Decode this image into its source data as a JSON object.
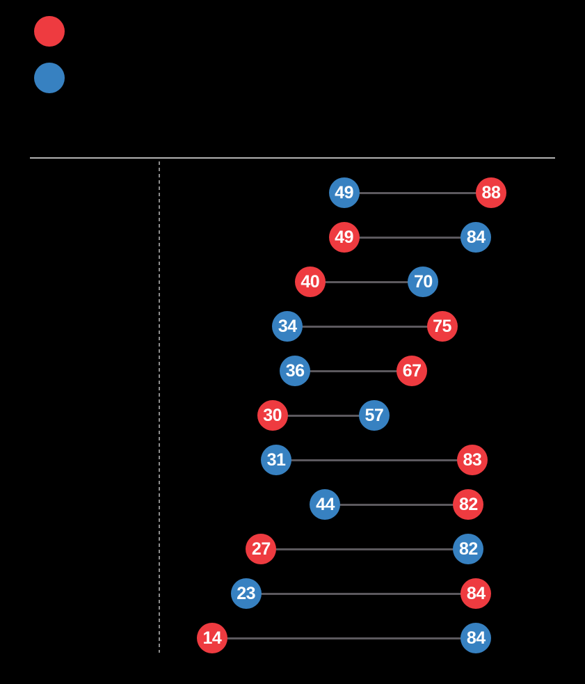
{
  "chart_data": {
    "type": "scatter",
    "variant": "dumbbell-horizontal",
    "grid": false,
    "xlim": [
      0,
      105
    ],
    "baseline": {
      "value": 0,
      "style": "dashed"
    },
    "legend": {
      "position": "top-left",
      "entries": [
        {
          "series": "red",
          "color": "#EE3B40"
        },
        {
          "series": "blue",
          "color": "#3781C1"
        }
      ]
    },
    "series_colors": {
      "red": "#EE3B40",
      "blue": "#3781C1"
    },
    "connector_color": "#5C595E",
    "rule_color": "#B2B2B2",
    "baseline_color": "#8C8C8C",
    "value_text_color": "#FFFFFF",
    "background_color": "#000000",
    "rows": [
      {
        "row": 1,
        "left": {
          "value": 49,
          "series": "blue"
        },
        "right": {
          "value": 88,
          "series": "red"
        }
      },
      {
        "row": 2,
        "left": {
          "value": 49,
          "series": "red"
        },
        "right": {
          "value": 84,
          "series": "blue"
        }
      },
      {
        "row": 3,
        "left": {
          "value": 40,
          "series": "red"
        },
        "right": {
          "value": 70,
          "series": "blue"
        }
      },
      {
        "row": 4,
        "left": {
          "value": 34,
          "series": "blue"
        },
        "right": {
          "value": 75,
          "series": "red"
        }
      },
      {
        "row": 5,
        "left": {
          "value": 36,
          "series": "blue"
        },
        "right": {
          "value": 67,
          "series": "red"
        }
      },
      {
        "row": 6,
        "left": {
          "value": 30,
          "series": "red"
        },
        "right": {
          "value": 57,
          "series": "blue"
        }
      },
      {
        "row": 7,
        "left": {
          "value": 31,
          "series": "blue"
        },
        "right": {
          "value": 83,
          "series": "red"
        }
      },
      {
        "row": 8,
        "left": {
          "value": 44,
          "series": "blue"
        },
        "right": {
          "value": 82,
          "series": "red"
        }
      },
      {
        "row": 9,
        "left": {
          "value": 27,
          "series": "red"
        },
        "right": {
          "value": 82,
          "series": "blue"
        }
      },
      {
        "row": 10,
        "left": {
          "value": 23,
          "series": "blue"
        },
        "right": {
          "value": 84,
          "series": "red"
        }
      },
      {
        "row": 11,
        "left": {
          "value": 14,
          "series": "red"
        },
        "right": {
          "value": 84,
          "series": "blue"
        }
      }
    ]
  }
}
